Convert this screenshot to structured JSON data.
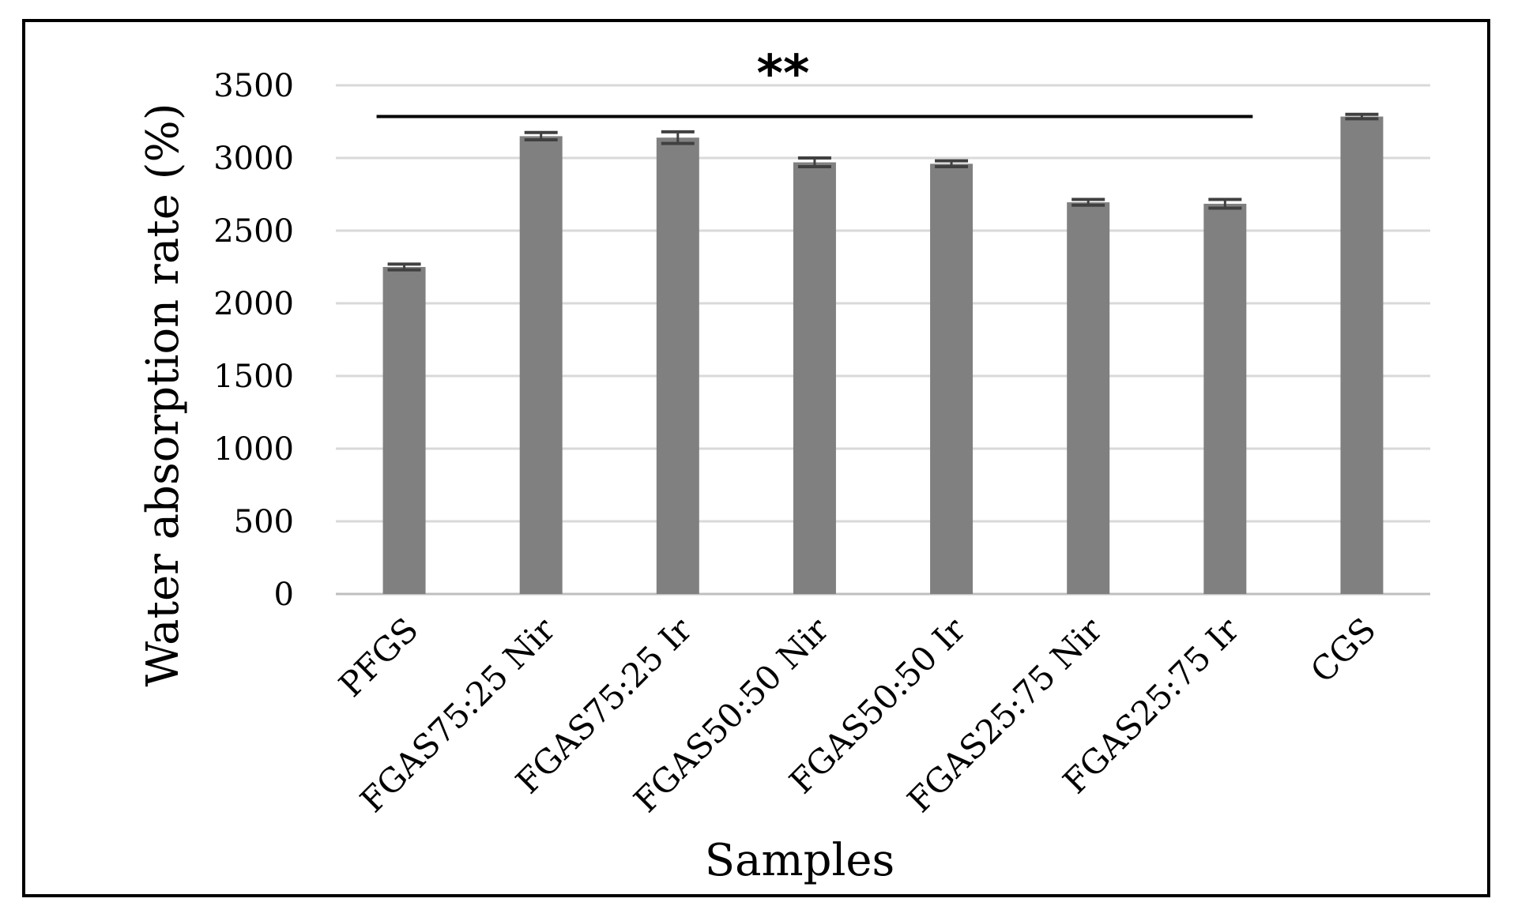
{
  "chart_data": {
    "type": "bar",
    "title": "",
    "xlabel": "Samples",
    "ylabel": "Water absorption rate (%)",
    "ylim": [
      0,
      3500
    ],
    "yticks": [
      0,
      500,
      1000,
      1500,
      2000,
      2500,
      3000,
      3500
    ],
    "grid": true,
    "categories": [
      "PFGS",
      "FGAS75:25 Nir",
      "FGAS75:25 Ir",
      "FGAS50:50 Nir",
      "FGAS50:50 Ir",
      "FGAS25:75 Nir",
      "FGAS25:75 Ir",
      "CGS"
    ],
    "values": [
      2250,
      3150,
      3140,
      2970,
      2960,
      2695,
      2685,
      3285
    ],
    "errors": [
      20,
      25,
      40,
      30,
      20,
      20,
      30,
      15
    ],
    "bar_color": "#808080",
    "annotation": {
      "text": "**",
      "span_from": "PFGS",
      "span_to": "FGAS25:75 Ir",
      "y": 3285
    }
  }
}
